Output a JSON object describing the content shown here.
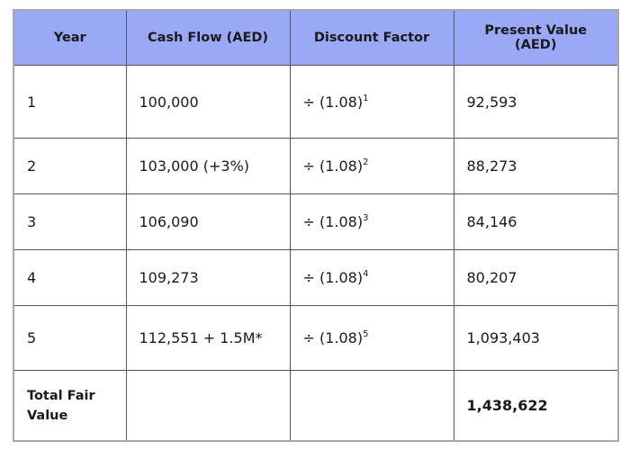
{
  "table": {
    "headers": [
      "Year",
      "Cash Flow (AED)",
      "Discount Factor",
      "Present Value (AED)"
    ],
    "header_color": "#9aa9f5",
    "rows": [
      {
        "year": "1",
        "cash_flow": "100,000",
        "discount_prefix": "÷ (1.08)",
        "discount_exp": "1",
        "present_value": "92,593"
      },
      {
        "year": "2",
        "cash_flow": "103,000 (+3%)",
        "discount_prefix": "÷ (1.08)",
        "discount_exp": "2",
        "present_value": "88,273"
      },
      {
        "year": "3",
        "cash_flow": "106,090",
        "discount_prefix": "÷ (1.08)",
        "discount_exp": "3",
        "present_value": "84,146"
      },
      {
        "year": "4",
        "cash_flow": "109,273",
        "discount_prefix": "÷ (1.08)",
        "discount_exp": "4",
        "present_value": "80,207"
      },
      {
        "year": "5",
        "cash_flow": "112,551 + 1.5M*",
        "discount_prefix": "÷ (1.08)",
        "discount_exp": "5",
        "present_value": "1,093,403"
      }
    ],
    "total": {
      "label": "Total Fair Value",
      "cash_flow": "",
      "discount": "",
      "present_value": "1,438,622"
    }
  }
}
